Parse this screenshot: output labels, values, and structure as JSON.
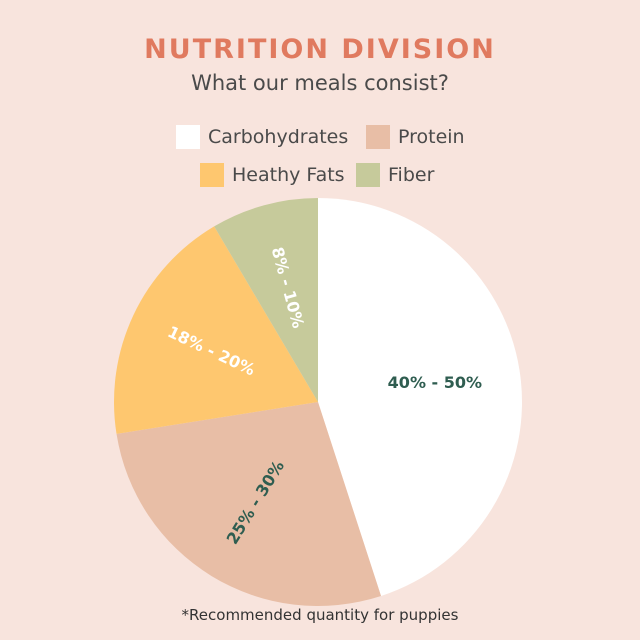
{
  "header": {
    "title": "NUTRITION DIVISION",
    "subtitle": "What our meals consist?"
  },
  "footer": {
    "note": "*Recommended quantity for puppies"
  },
  "chart_data": {
    "type": "pie",
    "title": "NUTRITION DIVISION",
    "subtitle": "What our meals consist?",
    "legend_position": "top",
    "slices": [
      {
        "name": "Carbohydrates",
        "label": "40% - 50%",
        "value": 45,
        "color": "#ffffff",
        "label_color": "#2f5d50"
      },
      {
        "name": "Protein",
        "label": "25% - 30%",
        "value": 27.5,
        "color": "#e8bea6",
        "label_color": "#2f5d50"
      },
      {
        "name": "Heathy Fats",
        "label": "18% - 20%",
        "value": 19,
        "color": "#fec76f",
        "label_color": "#ffffff"
      },
      {
        "name": "Fiber",
        "label": "8% - 10%",
        "value": 8.5,
        "color": "#c6ca9b",
        "label_color": "#ffffff"
      }
    ]
  }
}
